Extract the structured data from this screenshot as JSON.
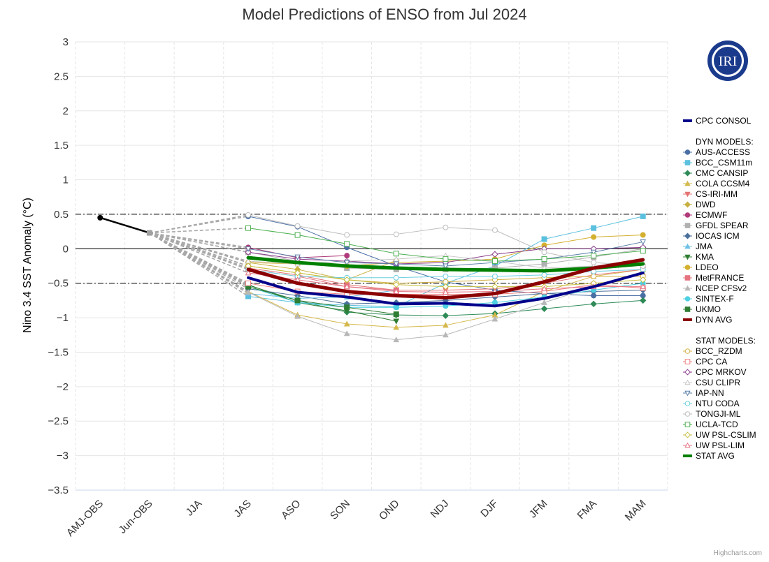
{
  "chart_data": {
    "type": "line",
    "title": "Model Predictions of ENSO from Jul 2024",
    "xlabel": "",
    "ylabel": "Nino 3.4 SST Anomaly (°C)",
    "ylim": [
      -3.5,
      3
    ],
    "yticks": [
      3,
      2.5,
      2,
      1.5,
      1,
      0.5,
      0,
      -0.5,
      -1,
      -1.5,
      -2,
      -2.5,
      -3,
      -3.5
    ],
    "ytick_labels": [
      "3",
      "2.5",
      "2",
      "1.5",
      "1",
      "0.5",
      "0",
      "−0.5",
      "−1",
      "−1.5",
      "−2",
      "−2.5",
      "−3",
      "−3.5"
    ],
    "categories": [
      "AMJ-OBS",
      "Jun-OBS",
      "JJA",
      "JAS",
      "ASO",
      "SON",
      "OND",
      "NDJ",
      "DJF",
      "JFM",
      "FMA",
      "MAM"
    ],
    "reference_lines": [
      0.5,
      0,
      -0.5
    ],
    "logo_text": "IRI",
    "credit": "Highcharts.com",
    "grid": true,
    "legend_position": "right",
    "observed": {
      "values": [
        0.45,
        0.23
      ]
    },
    "legend_headers": [
      "DYN MODELS:",
      "STAT MODELS:"
    ],
    "series": [
      {
        "name": "CPC CONSOL",
        "group": "consol",
        "color": "#00008b",
        "marker": "line",
        "values": [
          null,
          null,
          null,
          -0.42,
          -0.63,
          -0.7,
          -0.8,
          -0.79,
          -0.83,
          -0.72,
          -0.55,
          -0.35
        ]
      },
      {
        "name": "AUS-ACCESS",
        "group": "dyn",
        "color": "#4a6fa5",
        "marker": "circle",
        "values": [
          null,
          null,
          null,
          0.47,
          0.32,
          0.02,
          -0.25,
          -0.48,
          -0.6,
          -0.65,
          -0.68,
          -0.68
        ]
      },
      {
        "name": "BCC_CSM11m",
        "group": "dyn",
        "color": "#5bc0de",
        "marker": "square",
        "values": [
          null,
          null,
          null,
          -0.69,
          -0.78,
          -0.82,
          -0.84,
          -0.5,
          -0.25,
          0.14,
          0.3,
          0.47
        ]
      },
      {
        "name": "CMC CANSIP",
        "group": "dyn",
        "color": "#2e8b57",
        "marker": "diamond",
        "values": [
          null,
          null,
          null,
          -0.53,
          -0.75,
          -0.92,
          -0.96,
          -0.97,
          -0.94,
          -0.87,
          -0.8,
          -0.75
        ]
      },
      {
        "name": "COLA CCSM4",
        "group": "dyn",
        "color": "#d4b84a",
        "marker": "triangle",
        "values": [
          null,
          null,
          null,
          -0.62,
          -0.96,
          -1.09,
          -1.14,
          -1.11,
          -0.96,
          -0.62,
          -0.4,
          -0.3
        ]
      },
      {
        "name": "CS-IRI-MM",
        "group": "dyn",
        "color": "#e57373",
        "marker": "triangle-down",
        "values": [
          null,
          null,
          null,
          -0.28,
          -0.38,
          -0.52,
          -0.6,
          -0.6,
          -0.58,
          -0.5,
          -0.38,
          -0.3
        ]
      },
      {
        "name": "DWD",
        "group": "dyn",
        "color": "#c8b040",
        "marker": "diamond",
        "values": [
          null,
          null,
          null,
          -0.2,
          -0.3,
          -0.45,
          -0.17,
          null,
          null,
          null,
          null,
          null
        ]
      },
      {
        "name": "ECMWF",
        "group": "dyn",
        "color": "#b03a7a",
        "marker": "circle",
        "values": [
          null,
          null,
          null,
          0.02,
          -0.13,
          -0.1,
          null,
          null,
          null,
          null,
          null,
          null
        ]
      },
      {
        "name": "GFDL SPEAR",
        "group": "dyn",
        "color": "#b0b0b0",
        "marker": "square",
        "values": [
          null,
          null,
          null,
          -0.05,
          -0.18,
          -0.28,
          -0.3,
          -0.3,
          -0.28,
          -0.22,
          -0.12,
          0.0
        ]
      },
      {
        "name": "IOCAS ICM",
        "group": "dyn",
        "color": "#4a6f9a",
        "marker": "diamond",
        "values": [
          null,
          null,
          null,
          -0.58,
          -0.68,
          -0.8,
          -0.78,
          -0.75,
          -0.7,
          -0.65,
          -0.62,
          -0.6
        ]
      },
      {
        "name": "JMA",
        "group": "dyn",
        "color": "#6cc0e5",
        "marker": "triangle",
        "values": [
          null,
          null,
          null,
          -0.65,
          -0.72,
          -0.7,
          -0.6,
          null,
          null,
          null,
          null,
          null
        ]
      },
      {
        "name": "KMA",
        "group": "dyn",
        "color": "#2e7d32",
        "marker": "triangle-down",
        "values": [
          null,
          null,
          null,
          -0.52,
          -0.78,
          -0.9,
          -1.05,
          null,
          null,
          null,
          null,
          null
        ]
      },
      {
        "name": "LDEO",
        "group": "dyn",
        "color": "#d4b030",
        "marker": "circle",
        "values": [
          null,
          null,
          null,
          -0.2,
          -0.22,
          -0.25,
          -0.2,
          -0.18,
          -0.15,
          0.05,
          0.17,
          0.2
        ]
      },
      {
        "name": "MetFRANCE",
        "group": "dyn",
        "color": "#e57380",
        "marker": "square",
        "values": [
          null,
          null,
          null,
          -0.3,
          -0.4,
          -0.55,
          -0.6,
          null,
          null,
          null,
          null,
          null
        ]
      },
      {
        "name": "NCEP CFSv2",
        "group": "dyn",
        "color": "#b8b8b8",
        "marker": "triangle",
        "values": [
          null,
          null,
          null,
          -0.63,
          -0.98,
          -1.23,
          -1.32,
          -1.25,
          -1.02,
          -0.78,
          -0.55,
          -0.35
        ]
      },
      {
        "name": "SINTEX-F",
        "group": "dyn",
        "color": "#4dd0e1",
        "marker": "circle",
        "values": [
          null,
          null,
          null,
          -0.55,
          -0.78,
          -0.85,
          -0.85,
          -0.83,
          -0.78,
          -0.7,
          -0.6,
          -0.5
        ]
      },
      {
        "name": "UKMO",
        "group": "dyn",
        "color": "#2e7d32",
        "marker": "square",
        "values": [
          null,
          null,
          null,
          -0.55,
          -0.75,
          -0.85,
          -0.95,
          null,
          null,
          null,
          null,
          null
        ]
      },
      {
        "name": "DYN AVG",
        "group": "dyn-avg",
        "color": "#8b0000",
        "marker": "line",
        "values": [
          null,
          null,
          null,
          -0.3,
          -0.5,
          -0.62,
          -0.68,
          -0.71,
          -0.65,
          -0.48,
          -0.28,
          -0.16
        ]
      },
      {
        "name": "BCC_RZDM",
        "group": "stat",
        "color": "#d4b040",
        "marker": "circle-open",
        "values": [
          null,
          null,
          null,
          -0.25,
          -0.35,
          -0.45,
          -0.5,
          -0.48,
          -0.45,
          -0.42,
          -0.4,
          -0.4
        ]
      },
      {
        "name": "CPC CA",
        "group": "stat",
        "color": "#f08080",
        "marker": "square-open",
        "values": [
          null,
          null,
          null,
          -0.5,
          -0.62,
          -0.66,
          -0.66,
          -0.66,
          -0.66,
          -0.62,
          -0.52,
          -0.57
        ]
      },
      {
        "name": "CPC MRKOV",
        "group": "stat",
        "color": "#8b3a8b",
        "marker": "diamond-open",
        "values": [
          null,
          null,
          null,
          -0.05,
          -0.15,
          -0.18,
          -0.22,
          -0.2,
          -0.08,
          0.0,
          0.0,
          0.02
        ]
      },
      {
        "name": "CSU CLIPR",
        "group": "stat",
        "color": "#c8c8c8",
        "marker": "triangle-open",
        "values": [
          null,
          null,
          null,
          -0.18,
          -0.22,
          -0.18,
          -0.15,
          -0.1,
          -0.18,
          -0.28,
          -0.25,
          -0.2
        ]
      },
      {
        "name": "IAP-NN",
        "group": "stat",
        "color": "#5a7fa8",
        "marker": "triangle-down-open",
        "values": [
          null,
          null,
          null,
          0.0,
          -0.12,
          -0.2,
          -0.22,
          -0.25,
          -0.2,
          -0.15,
          -0.05,
          0.1
        ]
      },
      {
        "name": "NTU CODA",
        "group": "stat",
        "color": "#6ccfe0",
        "marker": "circle-open",
        "values": [
          null,
          null,
          null,
          -0.3,
          -0.4,
          -0.42,
          -0.42,
          -0.4,
          -0.4,
          -0.38,
          -0.33,
          -0.3
        ]
      },
      {
        "name": "TONGJI-ML",
        "group": "stat",
        "color": "#bdbdbd",
        "marker": "circle-open",
        "values": [
          null,
          null,
          null,
          0.49,
          0.33,
          0.2,
          0.21,
          0.31,
          0.27,
          -0.05,
          -0.2,
          -0.25
        ]
      },
      {
        "name": "UCLA-TCD",
        "group": "stat",
        "color": "#4caf50",
        "marker": "square-open",
        "values": [
          null,
          null,
          null,
          0.3,
          0.2,
          0.07,
          -0.07,
          -0.15,
          -0.18,
          -0.15,
          -0.1,
          -0.03
        ]
      },
      {
        "name": "UW PSL-CSLIM",
        "group": "stat",
        "color": "#c8c040",
        "marker": "diamond-open",
        "values": [
          null,
          null,
          null,
          -0.25,
          -0.35,
          -0.45,
          -0.52,
          -0.55,
          -0.55,
          -0.55,
          -0.5,
          -0.45
        ]
      },
      {
        "name": "UW PSL-LIM",
        "group": "stat",
        "color": "#e57383",
        "marker": "triangle-open",
        "values": [
          null,
          null,
          null,
          -0.35,
          -0.45,
          -0.55,
          -0.62,
          -0.63,
          -0.62,
          -0.58,
          -0.55,
          -0.55
        ]
      },
      {
        "name": "STAT AVG",
        "group": "stat-avg",
        "color": "#008000",
        "marker": "line",
        "values": [
          null,
          null,
          null,
          -0.13,
          -0.2,
          -0.25,
          -0.28,
          -0.3,
          -0.31,
          -0.32,
          -0.28,
          -0.22
        ]
      }
    ]
  }
}
